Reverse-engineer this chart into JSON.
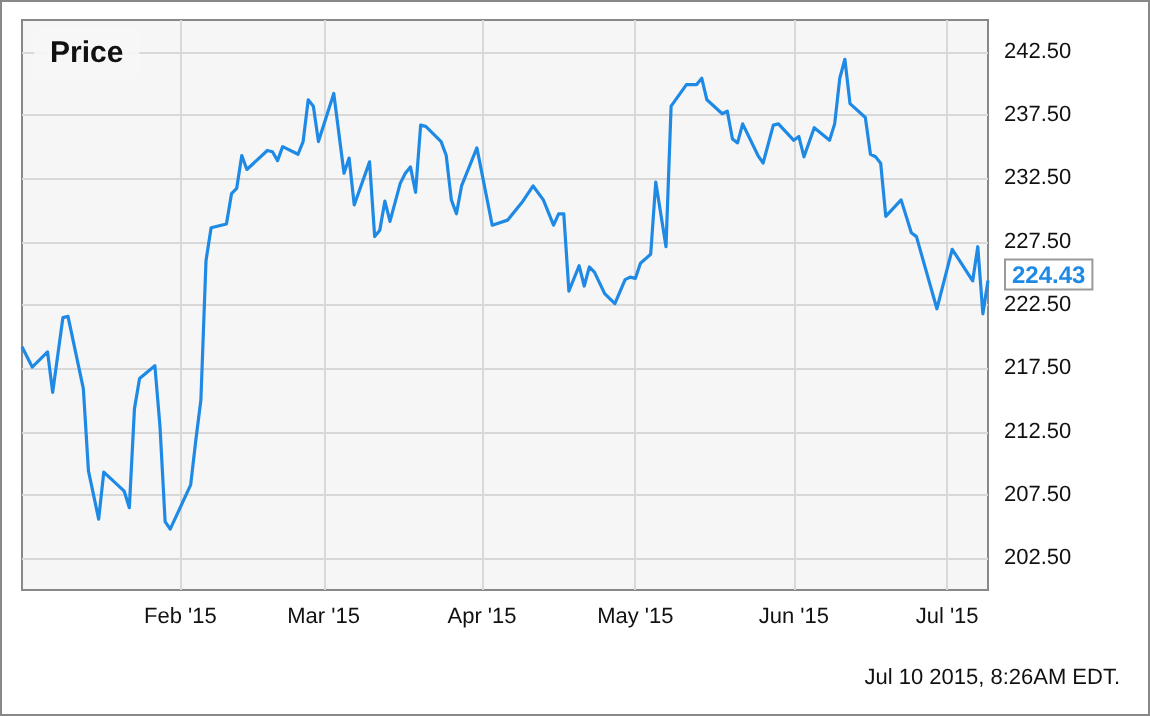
{
  "chart_data": {
    "type": "line",
    "title": "Price",
    "x": [
      "2015-01-01",
      "2015-01-03",
      "2015-01-06",
      "2015-01-07",
      "2015-01-09",
      "2015-01-10",
      "2015-01-13",
      "2015-01-14",
      "2015-01-16",
      "2015-01-17",
      "2015-01-21",
      "2015-01-22",
      "2015-01-23",
      "2015-01-24",
      "2015-01-27",
      "2015-01-28",
      "2015-01-29",
      "2015-01-30",
      "2015-02-03",
      "2015-02-04",
      "2015-02-05",
      "2015-02-06",
      "2015-02-07",
      "2015-02-10",
      "2015-02-11",
      "2015-02-12",
      "2015-02-13",
      "2015-02-14",
      "2015-02-18",
      "2015-02-19",
      "2015-02-20",
      "2015-02-21",
      "2015-02-24",
      "2015-02-25",
      "2015-02-26",
      "2015-02-27",
      "2015-02-28",
      "2015-03-03",
      "2015-03-05",
      "2015-03-06",
      "2015-03-07",
      "2015-03-10",
      "2015-03-11",
      "2015-03-12",
      "2015-03-13",
      "2015-03-14",
      "2015-03-16",
      "2015-03-17",
      "2015-03-18",
      "2015-03-19",
      "2015-03-20",
      "2015-03-21",
      "2015-03-24",
      "2015-03-25",
      "2015-03-26",
      "2015-03-27",
      "2015-03-28",
      "2015-03-31",
      "2015-04-03",
      "2015-04-06",
      "2015-04-09",
      "2015-04-11",
      "2015-04-13",
      "2015-04-15",
      "2015-04-16",
      "2015-04-17",
      "2015-04-18",
      "2015-04-20",
      "2015-04-21",
      "2015-04-22",
      "2015-04-23",
      "2015-04-25",
      "2015-04-27",
      "2015-04-29",
      "2015-04-30",
      "2015-05-01",
      "2015-05-02",
      "2015-05-04",
      "2015-05-05",
      "2015-05-07",
      "2015-05-08",
      "2015-05-11",
      "2015-05-13",
      "2015-05-14",
      "2015-05-15",
      "2015-05-18",
      "2015-05-19",
      "2015-05-20",
      "2015-05-21",
      "2015-05-22",
      "2015-05-25",
      "2015-05-26",
      "2015-05-28",
      "2015-05-29",
      "2015-06-01",
      "2015-06-02",
      "2015-06-03",
      "2015-06-05",
      "2015-06-08",
      "2015-06-09",
      "2015-06-10",
      "2015-06-11",
      "2015-06-12",
      "2015-06-15",
      "2015-06-16",
      "2015-06-17",
      "2015-06-18",
      "2015-06-19",
      "2015-06-22",
      "2015-06-24",
      "2015-06-25",
      "2015-06-29",
      "2015-07-02",
      "2015-07-06",
      "2015-07-07",
      "2015-07-08",
      "2015-07-09"
    ],
    "series": [
      {
        "color": "#1f8ae5",
        "values": [
          219.2,
          217.6,
          218.8,
          215.6,
          221.5,
          221.6,
          215.9,
          209.4,
          205.6,
          209.3,
          207.8,
          206.5,
          214.3,
          216.7,
          217.7,
          212.9,
          205.4,
          204.8,
          208.3,
          211.8,
          215.0,
          226.0,
          228.6,
          228.9,
          231.3,
          231.7,
          234.3,
          233.2,
          234.7,
          234.6,
          233.9,
          235.0,
          234.4,
          235.4,
          238.7,
          238.2,
          235.4,
          239.2,
          232.9,
          234.1,
          230.4,
          233.8,
          227.9,
          228.4,
          230.7,
          229.1,
          232.1,
          232.9,
          233.4,
          231.4,
          236.7,
          236.6,
          235.4,
          234.3,
          230.8,
          229.7,
          231.9,
          234.9,
          228.8,
          229.2,
          230.7,
          231.9,
          230.8,
          228.8,
          229.7,
          229.7,
          223.6,
          225.6,
          224.0,
          225.5,
          225.1,
          223.4,
          222.6,
          224.5,
          224.7,
          224.6,
          225.8,
          226.5,
          232.2,
          227.1,
          238.2,
          239.9,
          239.9,
          240.4,
          238.7,
          237.6,
          237.8,
          235.6,
          235.3,
          236.8,
          234.3,
          233.7,
          236.7,
          236.8,
          235.5,
          235.8,
          234.2,
          236.5,
          235.5,
          236.8,
          240.4,
          241.9,
          238.4,
          237.3,
          234.4,
          234.2,
          233.7,
          229.5,
          230.8,
          228.2,
          227.9,
          222.2,
          226.9,
          224.4,
          227.1,
          221.8,
          224.43
        ]
      }
    ],
    "xlim": [
      "2015-01-01",
      "2015-07-09"
    ],
    "xticks": [
      {
        "value": "2015-02-01",
        "label": "Feb '15"
      },
      {
        "value": "2015-03-01",
        "label": "Mar '15"
      },
      {
        "value": "2015-04-01",
        "label": "Apr '15"
      },
      {
        "value": "2015-05-01",
        "label": "May '15"
      },
      {
        "value": "2015-06-01",
        "label": "Jun '15"
      },
      {
        "value": "2015-07-01",
        "label": "Jul '15"
      }
    ],
    "ylim": [
      200,
      245
    ],
    "yticks": [
      {
        "value": 202.5,
        "label": "202.50"
      },
      {
        "value": 207.5,
        "label": "207.50"
      },
      {
        "value": 212.5,
        "label": "212.50"
      },
      {
        "value": 217.5,
        "label": "217.50"
      },
      {
        "value": 222.5,
        "label": "222.50"
      },
      {
        "value": 227.5,
        "label": "227.50"
      },
      {
        "value": 232.5,
        "label": "232.50"
      },
      {
        "value": 237.5,
        "label": "237.50"
      },
      {
        "value": 242.5,
        "label": "242.50"
      }
    ],
    "annotations": [
      {
        "text": "224.43",
        "x": "2015-07-09",
        "y": 224.43
      },
      "Jul 10 2015, 8:26AM EDT."
    ],
    "grid": true,
    "marker": "none",
    "line_style": "solid"
  }
}
